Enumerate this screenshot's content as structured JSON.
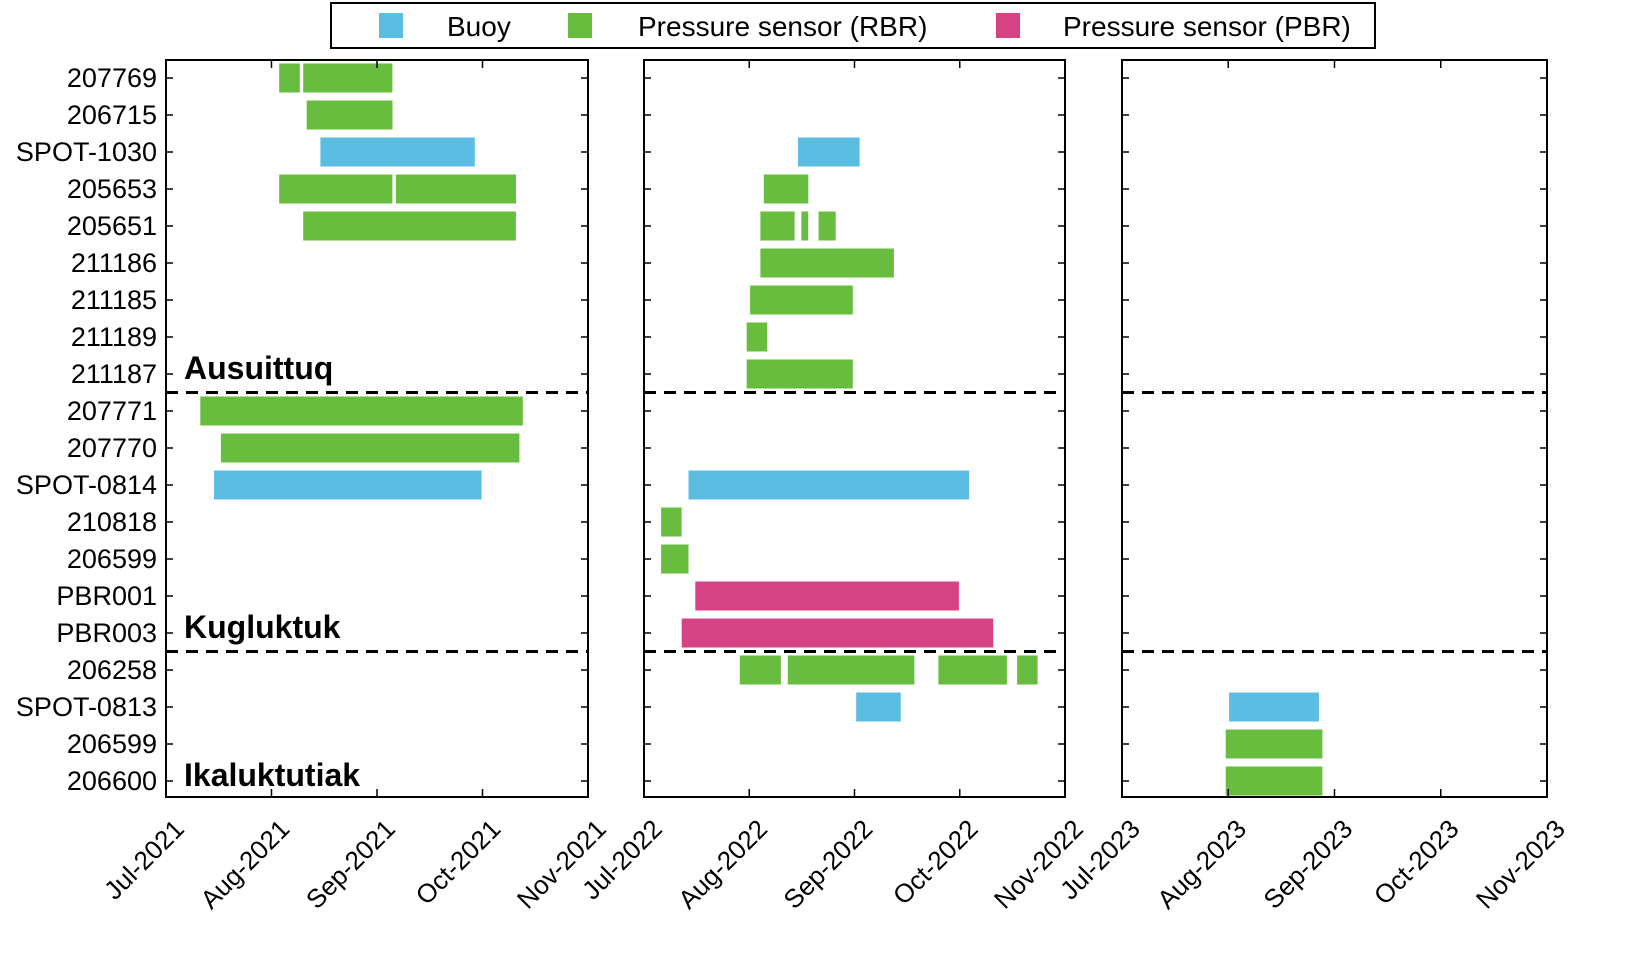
{
  "colors": {
    "buoy": "#5bbde2",
    "rbr": "#69bd3e",
    "pbr": "#d64384",
    "axis": "#000000",
    "divider": "#000000"
  },
  "legend": [
    {
      "key": "buoy",
      "label": "Buoy"
    },
    {
      "key": "rbr",
      "label": "Pressure sensor (RBR)"
    },
    {
      "key": "pbr",
      "label": "Pressure sensor (PBR)"
    }
  ],
  "chart_data": {
    "type": "bar",
    "orientation": "horizontal",
    "rows": [
      "207769",
      "206715",
      "SPOT-1030",
      "205653",
      "205651",
      "211186",
      "211185",
      "211189",
      "211187",
      "207771",
      "207770",
      "SPOT-0814",
      "210818",
      "206599",
      "PBR001",
      "PBR003",
      "206258",
      "SPOT-0813",
      "206599",
      "206600"
    ],
    "regions": [
      {
        "label": "Ausuittuq",
        "first_row": 0,
        "last_row": 8
      },
      {
        "label": "Kugluktuk",
        "first_row": 9,
        "last_row": 15
      },
      {
        "label": "Ikaluktutiak",
        "first_row": 16,
        "last_row": 19
      }
    ],
    "panels": [
      {
        "xlim": [
          "2021-07-01",
          "2021-11-01"
        ],
        "ticks": [
          "Jul-2021",
          "Aug-2021",
          "Sep-2021",
          "Oct-2021",
          "Nov-2021"
        ]
      },
      {
        "xlim": [
          "2022-07-01",
          "2022-11-01"
        ],
        "ticks": [
          "Jul-2022",
          "Aug-2022",
          "Sep-2022",
          "Oct-2022",
          "Nov-2022"
        ]
      },
      {
        "xlim": [
          "2023-07-01",
          "2023-11-01"
        ],
        "ticks": [
          "Jul-2023",
          "Aug-2023",
          "Sep-2023",
          "Oct-2023",
          "Nov-2023"
        ]
      }
    ],
    "series": [
      {
        "row": 0,
        "panel": 0,
        "type": "rbr",
        "start": "2021-08-03",
        "end": "2021-08-09"
      },
      {
        "row": 0,
        "panel": 0,
        "type": "rbr",
        "start": "2021-08-10",
        "end": "2021-09-05"
      },
      {
        "row": 1,
        "panel": 0,
        "type": "rbr",
        "start": "2021-08-11",
        "end": "2021-09-05"
      },
      {
        "row": 2,
        "panel": 0,
        "type": "buoy",
        "start": "2021-08-15",
        "end": "2021-09-29"
      },
      {
        "row": 3,
        "panel": 0,
        "type": "rbr",
        "start": "2021-08-03",
        "end": "2021-09-05"
      },
      {
        "row": 3,
        "panel": 0,
        "type": "rbr",
        "start": "2021-09-06",
        "end": "2021-10-11"
      },
      {
        "row": 4,
        "panel": 0,
        "type": "rbr",
        "start": "2021-08-10",
        "end": "2021-10-11"
      },
      {
        "row": 9,
        "panel": 0,
        "type": "rbr",
        "start": "2021-07-11",
        "end": "2021-10-13"
      },
      {
        "row": 10,
        "panel": 0,
        "type": "rbr",
        "start": "2021-07-17",
        "end": "2021-10-12"
      },
      {
        "row": 11,
        "panel": 0,
        "type": "buoy",
        "start": "2021-07-15",
        "end": "2021-10-01"
      },
      {
        "row": 2,
        "panel": 1,
        "type": "buoy",
        "start": "2022-08-15",
        "end": "2022-09-02"
      },
      {
        "row": 3,
        "panel": 1,
        "type": "rbr",
        "start": "2022-08-05",
        "end": "2022-08-18"
      },
      {
        "row": 4,
        "panel": 1,
        "type": "rbr",
        "start": "2022-08-04",
        "end": "2022-08-14"
      },
      {
        "row": 4,
        "panel": 1,
        "type": "rbr",
        "start": "2022-08-16",
        "end": "2022-08-18"
      },
      {
        "row": 4,
        "panel": 1,
        "type": "rbr",
        "start": "2022-08-21",
        "end": "2022-08-26"
      },
      {
        "row": 5,
        "panel": 1,
        "type": "rbr",
        "start": "2022-08-04",
        "end": "2022-09-12"
      },
      {
        "row": 6,
        "panel": 1,
        "type": "rbr",
        "start": "2022-08-01",
        "end": "2022-08-31"
      },
      {
        "row": 7,
        "panel": 1,
        "type": "rbr",
        "start": "2022-07-31",
        "end": "2022-08-06"
      },
      {
        "row": 8,
        "panel": 1,
        "type": "rbr",
        "start": "2022-07-31",
        "end": "2022-08-31"
      },
      {
        "row": 11,
        "panel": 1,
        "type": "buoy",
        "start": "2022-07-14",
        "end": "2022-10-04"
      },
      {
        "row": 12,
        "panel": 1,
        "type": "rbr",
        "start": "2022-07-06",
        "end": "2022-07-12"
      },
      {
        "row": 13,
        "panel": 1,
        "type": "rbr",
        "start": "2022-07-06",
        "end": "2022-07-14"
      },
      {
        "row": 14,
        "panel": 1,
        "type": "pbr",
        "start": "2022-07-16",
        "end": "2022-10-01"
      },
      {
        "row": 15,
        "panel": 1,
        "type": "pbr",
        "start": "2022-07-12",
        "end": "2022-10-11"
      },
      {
        "row": 16,
        "panel": 1,
        "type": "rbr",
        "start": "2022-07-29",
        "end": "2022-08-10"
      },
      {
        "row": 16,
        "panel": 1,
        "type": "rbr",
        "start": "2022-08-12",
        "end": "2022-09-18"
      },
      {
        "row": 16,
        "panel": 1,
        "type": "rbr",
        "start": "2022-09-25",
        "end": "2022-10-15"
      },
      {
        "row": 16,
        "panel": 1,
        "type": "rbr",
        "start": "2022-10-18",
        "end": "2022-10-24"
      },
      {
        "row": 17,
        "panel": 1,
        "type": "buoy",
        "start": "2022-09-01",
        "end": "2022-09-14"
      },
      {
        "row": 17,
        "panel": 2,
        "type": "buoy",
        "start": "2023-08-01",
        "end": "2023-08-27"
      },
      {
        "row": 18,
        "panel": 2,
        "type": "rbr",
        "start": "2023-07-31",
        "end": "2023-08-28"
      },
      {
        "row": 19,
        "panel": 2,
        "type": "rbr",
        "start": "2023-07-31",
        "end": "2023-08-28"
      }
    ]
  }
}
